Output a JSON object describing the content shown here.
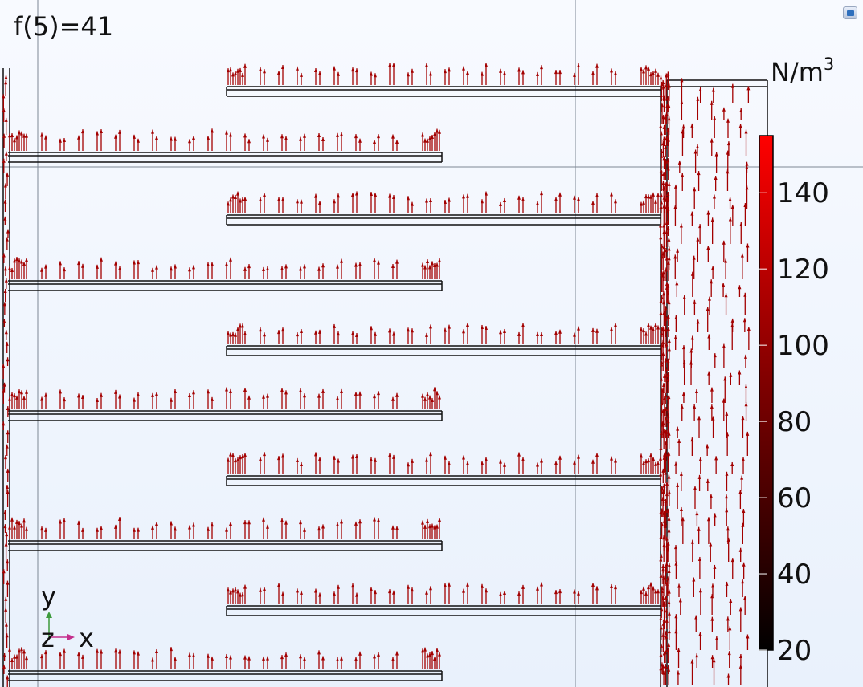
{
  "title": "f(5)=41",
  "axes": {
    "y_label": "y",
    "z_label": "z",
    "x_label": "x"
  },
  "colors": {
    "arrow": "#a30000",
    "frame": "#111111",
    "background_top": "#f8faff",
    "background_bottom": "#e9f1fc"
  },
  "chart_data": {
    "type": "heatmap",
    "title": "f(5)=41",
    "colorbar": {
      "unit": "N/m",
      "unit_exponent": "3",
      "ticks": [
        140,
        120,
        100,
        80,
        60,
        40,
        20
      ],
      "range": [
        20,
        155
      ],
      "colors": [
        "#000000",
        "#ff0000"
      ]
    },
    "arrow_direction": "up",
    "grid": true,
    "legend": "right"
  }
}
